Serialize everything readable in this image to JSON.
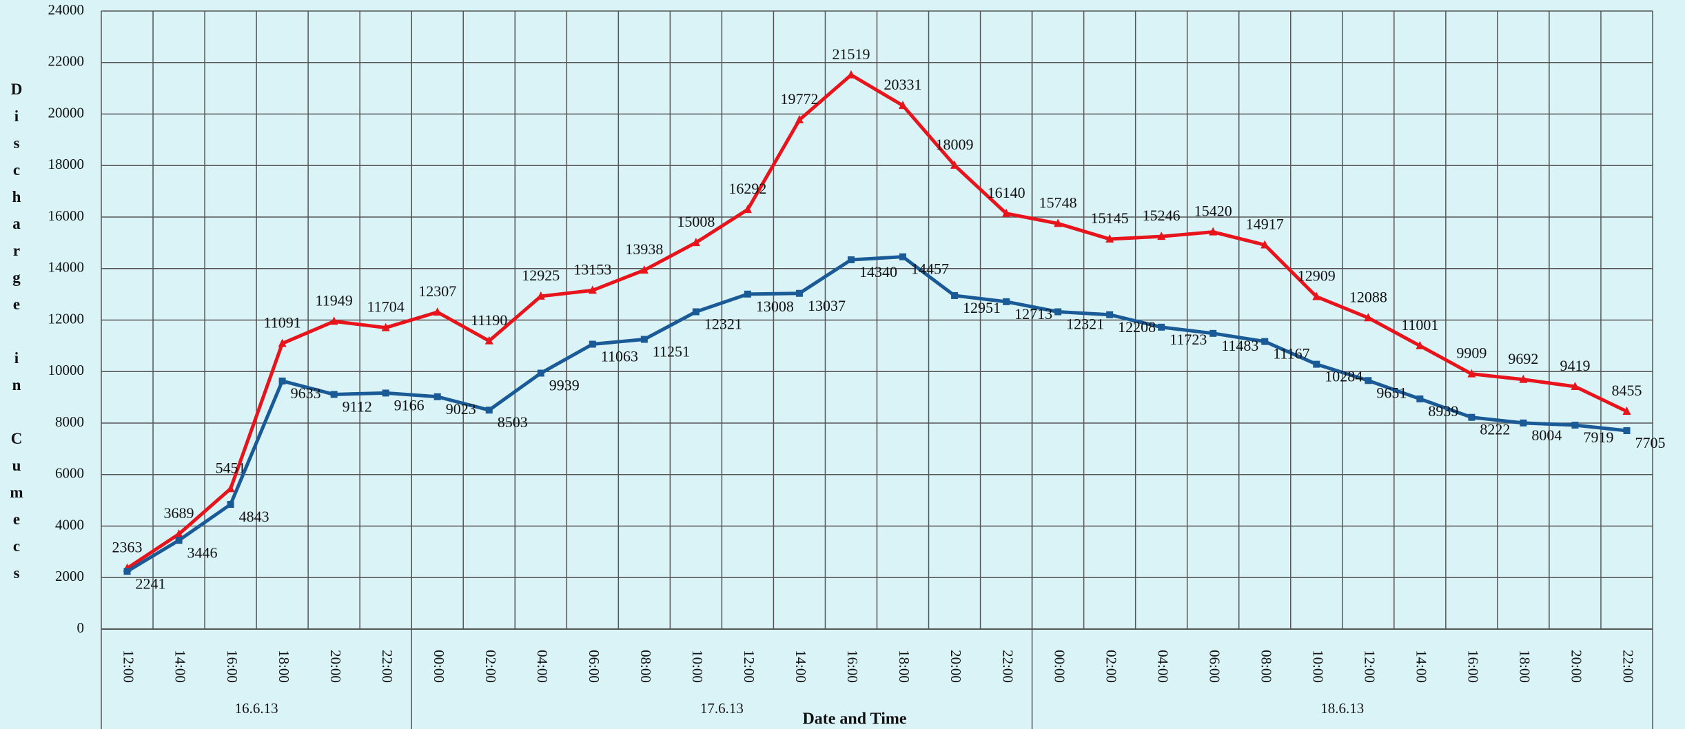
{
  "chart_data": {
    "type": "line",
    "x_label": "Date and Time",
    "y_label": "Discharge in Cumecs",
    "groups": [
      {
        "label": "16.6.13",
        "categories": [
          "12:00",
          "14:00",
          "16:00",
          "18:00",
          "20:00",
          "22:00"
        ]
      },
      {
        "label": "17.6.13",
        "categories": [
          "00:00",
          "02:00",
          "04:00",
          "06:00",
          "08:00",
          "10:00",
          "12:00",
          "14:00",
          "16:00",
          "18:00",
          "20:00",
          "22:00"
        ]
      },
      {
        "label": "18.6.13",
        "categories": [
          "00:00",
          "02:00",
          "04:00",
          "06:00",
          "08:00",
          "10:00",
          "12:00",
          "14:00",
          "16:00",
          "18:00",
          "20:00",
          "22:00"
        ]
      }
    ],
    "series": [
      {
        "color": "#e8141b",
        "marker": "triangle",
        "values": [
          2363,
          3689,
          5451,
          11091,
          11949,
          11704,
          12307,
          11190,
          12925,
          13153,
          13938,
          15008,
          16292,
          19772,
          21519,
          20331,
          18009,
          16140,
          15748,
          15145,
          15246,
          15420,
          14917,
          12909,
          12088,
          11001,
          9909,
          9692,
          9419,
          8455
        ]
      },
      {
        "color": "#1a5a96",
        "marker": "square",
        "values": [
          2241,
          3446,
          4843,
          9633,
          9112,
          9166,
          9023,
          8503,
          9939,
          11063,
          11251,
          12321,
          13008,
          13037,
          14340,
          14457,
          12951,
          12713,
          12321,
          12208,
          11723,
          11483,
          11167,
          10284,
          9651,
          8939,
          8222,
          8004,
          7919,
          7705
        ]
      }
    ],
    "ylim": [
      0,
      24000
    ],
    "yticks": [
      0,
      2000,
      4000,
      6000,
      8000,
      10000,
      12000,
      14000,
      16000,
      18000,
      20000,
      22000,
      24000
    ],
    "grid": true
  }
}
